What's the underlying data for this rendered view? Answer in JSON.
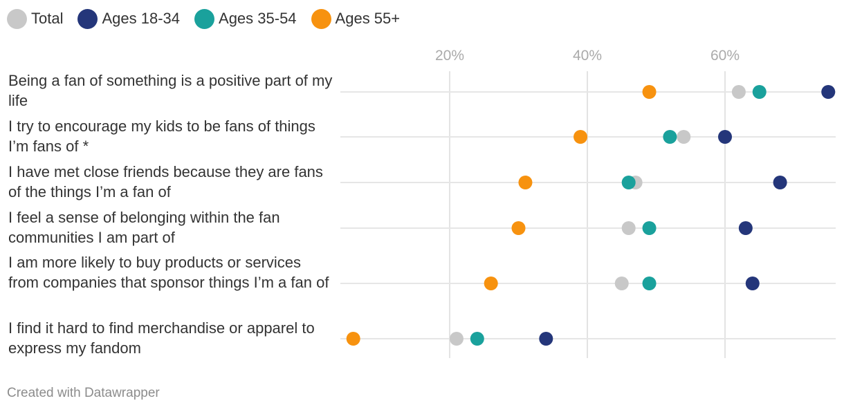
{
  "legend": [
    {
      "name": "Total",
      "color": "#c8c8c8"
    },
    {
      "name": "Ages 18-34",
      "color": "#24367a"
    },
    {
      "name": "Ages 35-54",
      "color": "#1aa19c"
    },
    {
      "name": "Ages 55+",
      "color": "#f7920f"
    }
  ],
  "chart_data": {
    "type": "scatter",
    "subtype": "dot-plot",
    "axis": {
      "ticks": [
        "20%",
        "40%",
        "60%"
      ],
      "tick_values": [
        20,
        40,
        60
      ],
      "range": [
        3,
        76
      ],
      "gridlines": true
    },
    "categories": [
      "Being a fan of something is a positive part of my life",
      "I try to encourage my kids to be fans of things I’m fans of *",
      "I have met close friends because they are fans of the things I’m a fan of",
      "I feel a sense of belonging within the fan communities I am part of",
      "I am more likely to buy products or services from companies that sponsor things I’m a fan of",
      "I find it hard to find merchandise or apparel to express my fandom"
    ],
    "series": [
      {
        "name": "Total",
        "color": "#c8c8c8",
        "values": [
          62,
          54,
          47,
          46,
          45,
          21
        ]
      },
      {
        "name": "Ages 18-34",
        "color": "#24367a",
        "values": [
          75,
          60,
          68,
          63,
          64,
          34
        ]
      },
      {
        "name": "Ages 35-54",
        "color": "#1aa19c",
        "values": [
          65,
          52,
          46,
          49,
          49,
          24
        ]
      },
      {
        "name": "Ages 55+",
        "color": "#f7920f",
        "values": [
          49,
          39,
          31,
          30,
          26,
          6
        ]
      }
    ]
  },
  "footer": "Created with Datawrapper"
}
